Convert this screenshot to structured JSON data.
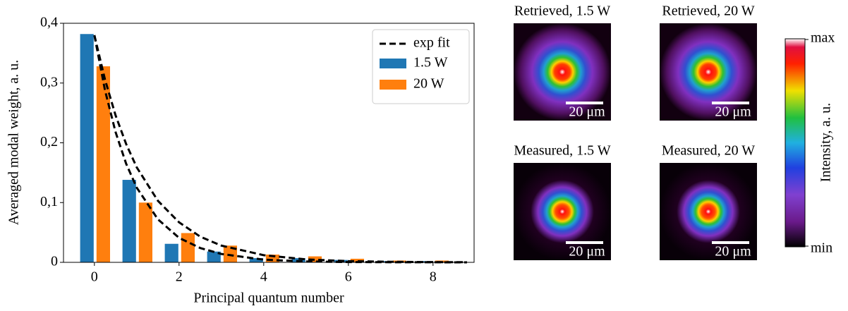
{
  "chart_data": {
    "type": "bar",
    "ylabel": "Averaged modal weight, a. u.",
    "xlabel": "Principal quantum number",
    "x": [
      0,
      1,
      2,
      3,
      4,
      5,
      6,
      7,
      8
    ],
    "series": [
      {
        "name": "1.5 W",
        "color": "#1f77b4",
        "values": [
          0.382,
          0.138,
          0.031,
          0.018,
          0.007,
          0.007,
          0.004,
          0.002,
          0.002
        ]
      },
      {
        "name": "20 W",
        "color": "#ff7f0e",
        "values": [
          0.328,
          0.1,
          0.049,
          0.028,
          0.013,
          0.01,
          0.006,
          0.003,
          0.003
        ]
      }
    ],
    "fit": {
      "name": "exp fit",
      "color": "#000000",
      "curves": [
        {
          "x": [
            0,
            0.25,
            0.5,
            0.75,
            1,
            1.5,
            2,
            2.5,
            3,
            4,
            5,
            6,
            7,
            8,
            8.8
          ],
          "values": [
            0.38,
            0.288,
            0.218,
            0.165,
            0.125,
            0.072,
            0.041,
            0.024,
            0.014,
            0.0045,
            0.0015,
            0.0005,
            0.0002,
            0.0001,
            0
          ]
        },
        {
          "x": [
            0,
            0.25,
            0.5,
            0.75,
            1,
            1.5,
            2,
            2.5,
            3,
            4,
            5,
            6,
            7,
            8,
            8.8
          ],
          "values": [
            0.38,
            0.306,
            0.246,
            0.198,
            0.159,
            0.103,
            0.067,
            0.043,
            0.028,
            0.012,
            0.0049,
            0.0021,
            0.0009,
            0.0004,
            0.0002
          ]
        }
      ]
    },
    "xlim": [
      -0.73,
      8.97
    ],
    "ylim": [
      0,
      0.4
    ],
    "xticks": [
      0,
      2,
      4,
      6,
      8
    ],
    "yticks": [
      0,
      {
        "value": 0.1,
        "label": "0,1"
      },
      {
        "value": 0.2,
        "label": "0,2"
      },
      {
        "value": 0.3,
        "label": "0,3"
      },
      {
        "value": 0.4,
        "label": "0,4"
      }
    ],
    "legend": "upper right"
  },
  "panels": [
    {
      "title": "Retrieved, 1.5 W",
      "scale_label": "20 μm"
    },
    {
      "title": "Retrieved, 20 W",
      "scale_label": "20 μm"
    },
    {
      "title": "Measured, 1.5 W",
      "scale_label": "20 μm"
    },
    {
      "title": "Measured, 20 W",
      "scale_label": "20 μm"
    }
  ],
  "colorbar": {
    "label": "Intensity, a. u.",
    "max": "max",
    "min": "min"
  }
}
